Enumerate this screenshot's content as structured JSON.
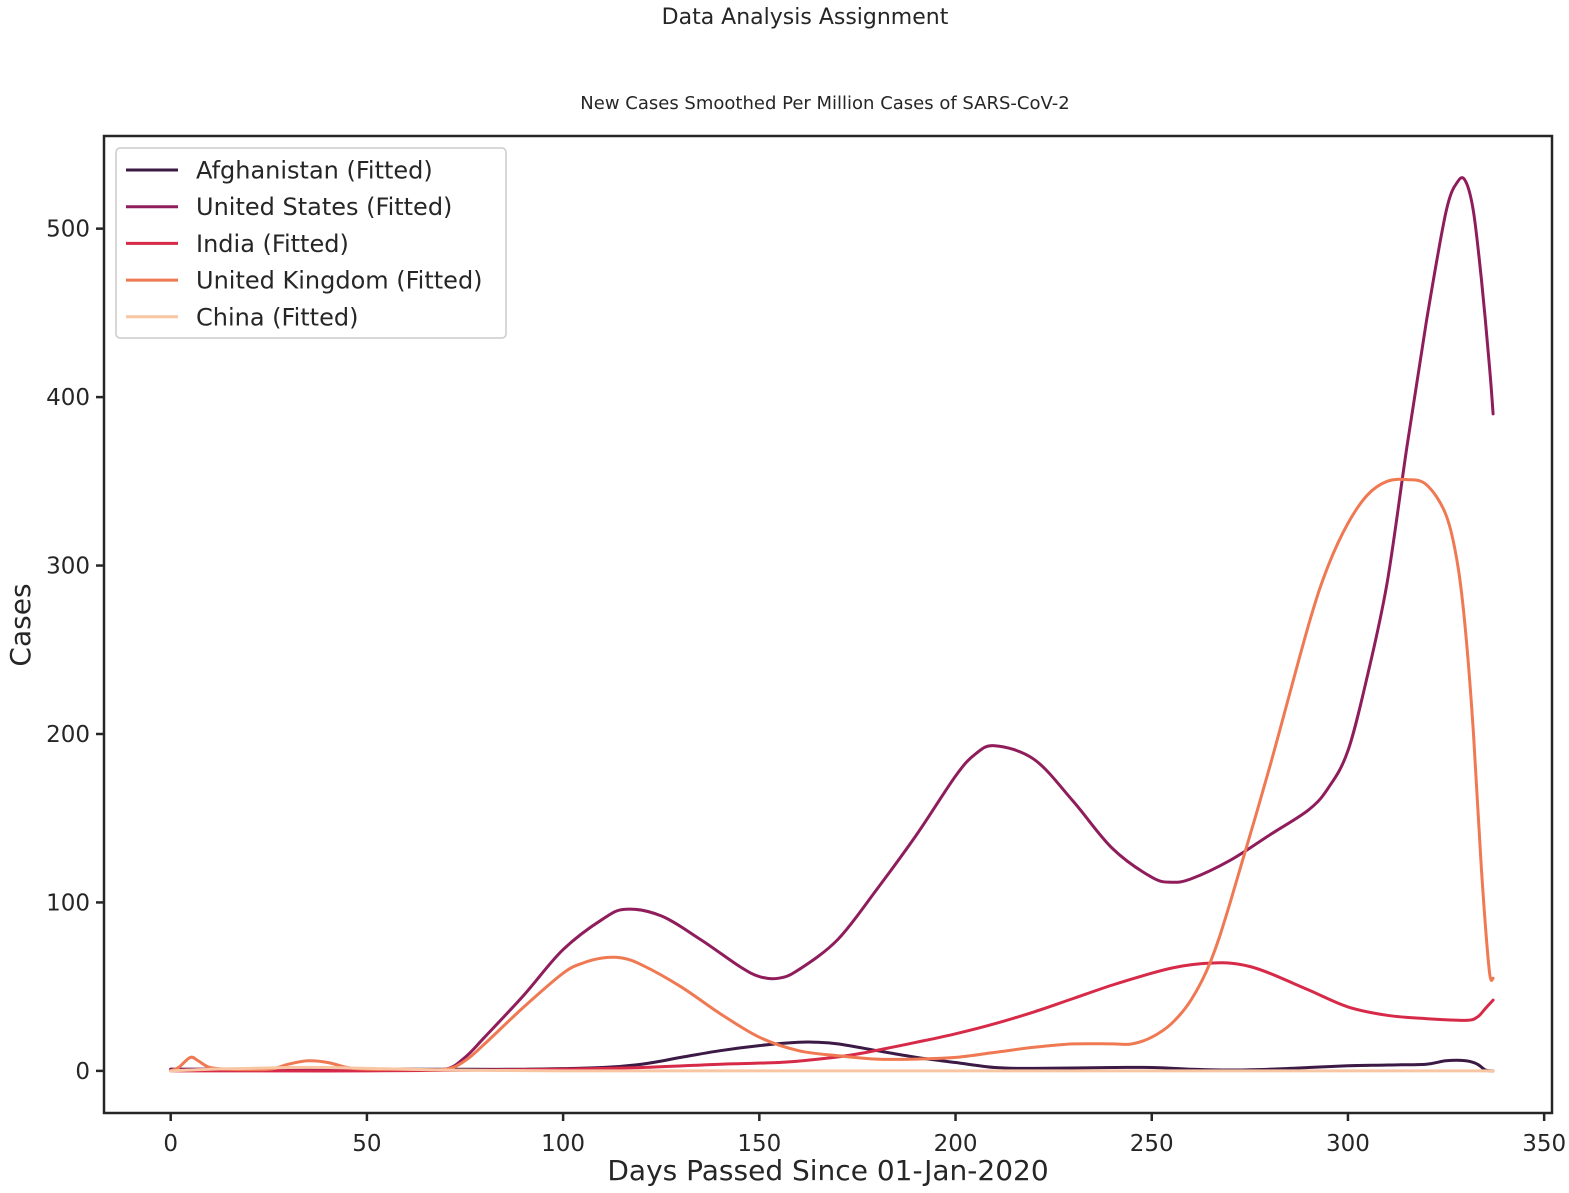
{
  "chart_data": {
    "type": "line",
    "suptitle": "Data Analysis Assignment",
    "title": "New Cases Smoothed Per Million Cases of  SARS-CoV-2",
    "xlabel": "Days Passed Since 01-Jan-2020",
    "ylabel": "Cases",
    "xlim": [
      -17,
      352
    ],
    "ylim": [
      -25,
      555
    ],
    "xticks": [
      0,
      50,
      100,
      150,
      200,
      250,
      300,
      350
    ],
    "yticks": [
      0,
      100,
      200,
      300,
      400,
      500
    ],
    "grid": false,
    "legend_position": "top-left",
    "series": [
      {
        "name": "Afghanistan (Fitted)",
        "color": "#3b1a45",
        "x": [
          0,
          10,
          30,
          50,
          70,
          90,
          110,
          120,
          130,
          140,
          150,
          160,
          165,
          170,
          180,
          190,
          200,
          210,
          220,
          240,
          250,
          260,
          270,
          280,
          290,
          300,
          310,
          320,
          325,
          330,
          333,
          335,
          337
        ],
        "y": [
          1,
          1,
          1,
          1,
          1,
          1,
          2,
          4,
          8,
          12,
          15,
          17,
          17,
          16,
          12,
          8,
          5,
          2,
          1.5,
          2,
          2,
          1,
          0.5,
          1,
          2,
          3,
          3.5,
          4,
          6,
          6,
          4,
          0.5,
          0
        ]
      },
      {
        "name": "United States (Fitted)",
        "color": "#8f1d5b",
        "x": [
          0,
          20,
          40,
          60,
          70,
          75,
          80,
          90,
          100,
          110,
          116,
          125,
          135,
          145,
          150,
          155,
          160,
          170,
          180,
          190,
          200,
          205,
          210,
          220,
          230,
          240,
          250,
          255,
          260,
          270,
          280,
          290,
          295,
          300,
          305,
          310,
          315,
          320,
          325,
          328,
          330,
          332,
          334,
          336,
          337
        ],
        "y": [
          1,
          1,
          1,
          1,
          1,
          8,
          20,
          45,
          72,
          90,
          96,
          92,
          78,
          62,
          56,
          55,
          60,
          78,
          108,
          140,
          175,
          188,
          193,
          185,
          160,
          132,
          115,
          112,
          114,
          125,
          140,
          155,
          168,
          190,
          235,
          290,
          370,
          445,
          510,
          528,
          528,
          510,
          470,
          420,
          390
        ]
      },
      {
        "name": "India (Fitted)",
        "color": "#d62a48",
        "x": [
          0,
          20,
          50,
          80,
          100,
          120,
          140,
          155,
          165,
          175,
          190,
          200,
          210,
          220,
          230,
          240,
          250,
          255,
          260,
          265,
          270,
          275,
          280,
          290,
          300,
          310,
          320,
          330,
          333,
          335,
          337
        ],
        "y": [
          0,
          0,
          0,
          0.5,
          1,
          2,
          4,
          5,
          7,
          10,
          17,
          22,
          28,
          35,
          43,
          51,
          58,
          61,
          63,
          64,
          64,
          62,
          58,
          48,
          38,
          33,
          31,
          30,
          32,
          37,
          42
        ]
      },
      {
        "name": "United Kingdom (Fitted)",
        "color": "#ef7952",
        "x": [
          0,
          2,
          5,
          7,
          10,
          15,
          25,
          30,
          35,
          40,
          45,
          50,
          60,
          70,
          75,
          80,
          90,
          100,
          105,
          110,
          115,
          120,
          130,
          140,
          150,
          160,
          170,
          180,
          190,
          200,
          210,
          220,
          230,
          240,
          245,
          250,
          255,
          260,
          265,
          270,
          280,
          290,
          295,
          300,
          305,
          310,
          315,
          320,
          325,
          328,
          330,
          332,
          334,
          336,
          337
        ],
        "y": [
          0,
          2,
          8,
          6,
          2,
          1,
          1,
          4,
          6,
          5,
          2,
          1,
          1,
          1,
          6,
          16,
          38,
          58,
          64,
          67,
          67,
          63,
          50,
          34,
          20,
          12,
          9,
          7,
          7,
          8,
          11,
          14,
          16,
          16,
          16,
          20,
          28,
          42,
          65,
          100,
          180,
          265,
          300,
          325,
          342,
          350,
          351,
          348,
          330,
          300,
          260,
          200,
          120,
          60,
          55
        ]
      },
      {
        "name": "China (Fitted)",
        "color": "#f9c6a3",
        "x": [
          0,
          10,
          20,
          30,
          40,
          50,
          60,
          70,
          80,
          100,
          150,
          200,
          250,
          300,
          337
        ],
        "y": [
          0,
          1,
          1.5,
          2,
          2,
          1.5,
          1,
          0.5,
          0.3,
          0,
          0,
          0,
          0,
          0,
          0
        ]
      }
    ]
  }
}
